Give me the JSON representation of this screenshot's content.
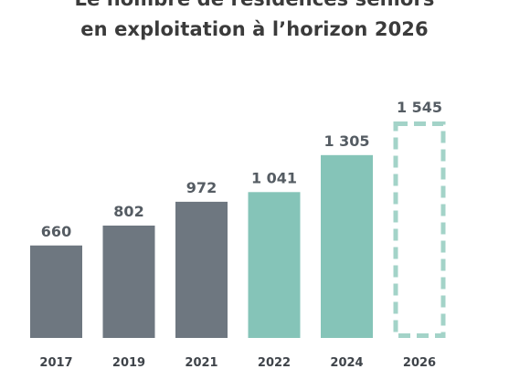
{
  "chart_data": {
    "type": "bar",
    "title_lines": [
      "Le nombre de résidences seniors",
      "en exploitation à l’horizon 2026"
    ],
    "categories": [
      "2017",
      "2019",
      "2021",
      "2022",
      "2024",
      "2026"
    ],
    "values": [
      660,
      802,
      972,
      1041,
      1305,
      1545
    ],
    "value_labels": [
      "660",
      "802",
      "972",
      "1 041",
      "1 305",
      "1 545"
    ],
    "bar_status": [
      "historical",
      "historical",
      "historical",
      "recent",
      "recent",
      "projected"
    ],
    "xlabel": "",
    "ylabel": "",
    "ylim": [
      0,
      1545
    ],
    "grid": false,
    "legend": "none",
    "colors": {
      "historical": "#6e7780",
      "recent": "#85c4b8",
      "projected": "#a3d3c8",
      "title": "#3b3b3b",
      "value_label": "#555c63",
      "tick_label": "#3f444a"
    }
  }
}
